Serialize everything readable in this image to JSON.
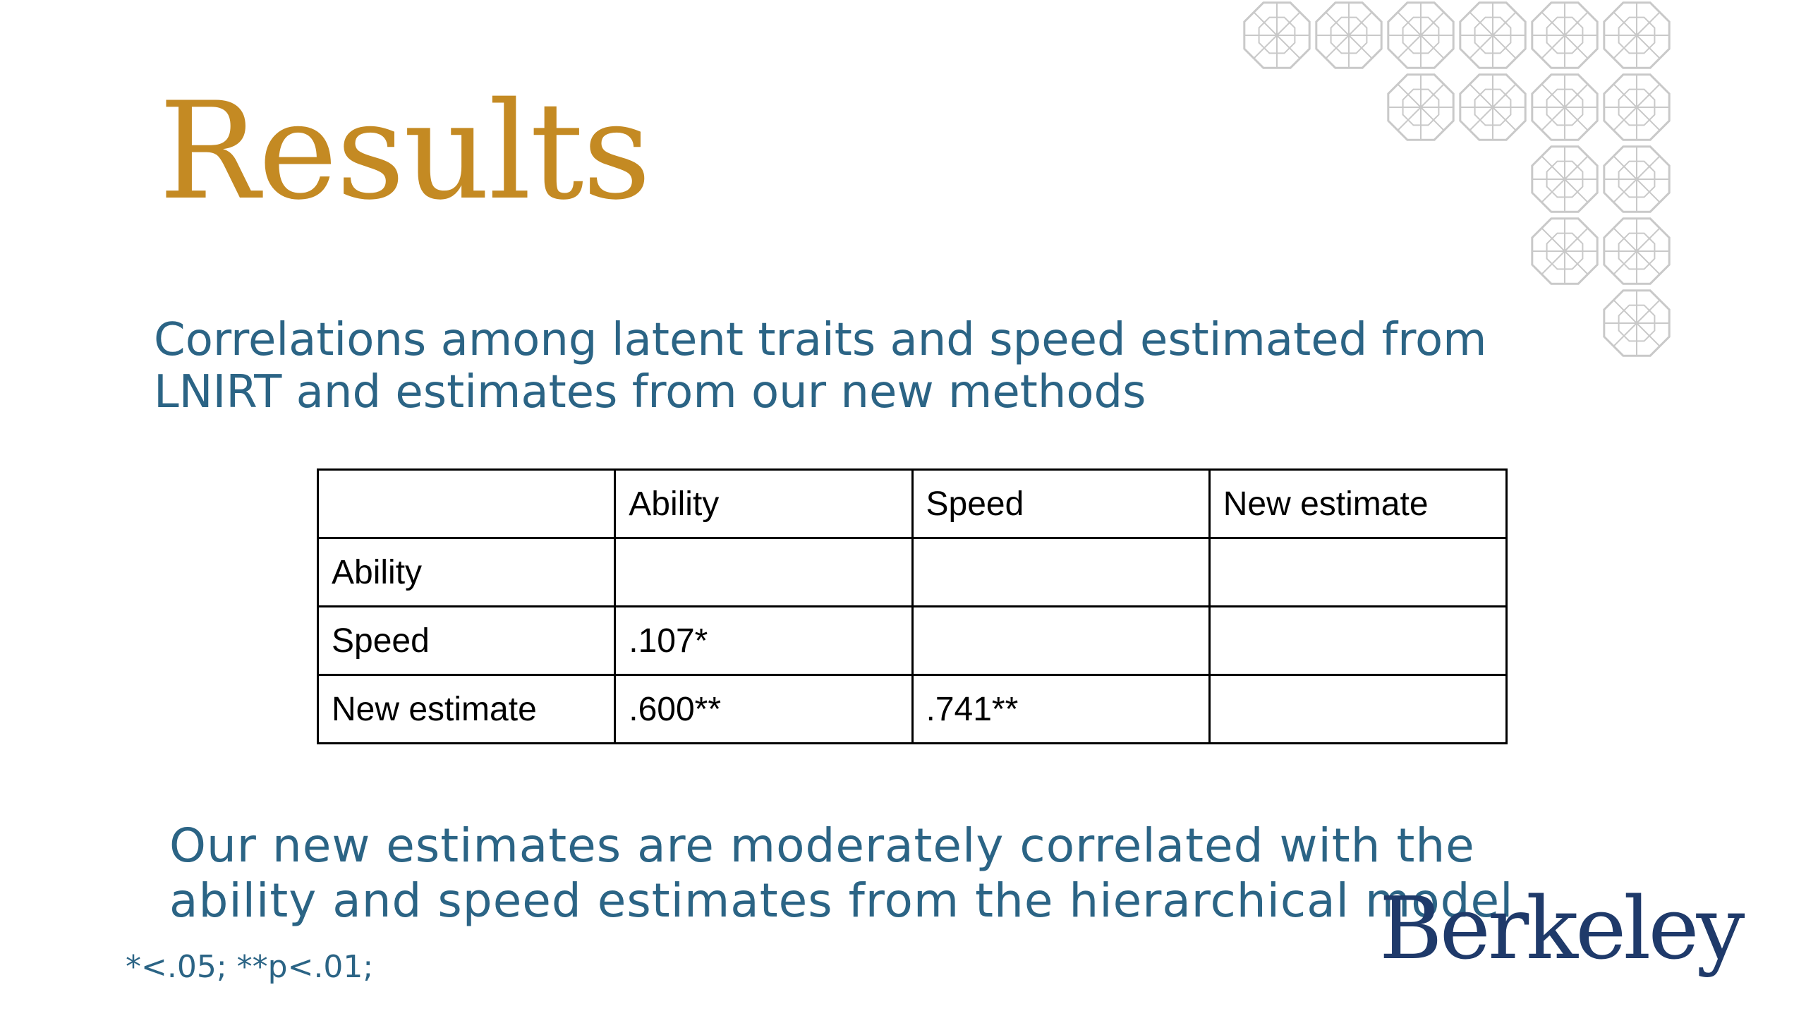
{
  "slide": {
    "title": "Results",
    "subtitle_lines": [
      "Correlations among latent traits and speed estimated from",
      "LNIRT and estimates from our new methods"
    ],
    "table": {
      "header": [
        "",
        "Ability",
        "Speed",
        "New estimate"
      ],
      "rows": [
        [
          "Ability",
          "",
          "",
          ""
        ],
        [
          "Speed",
          ".107*",
          "",
          ""
        ],
        [
          "New estimate",
          ".600**",
          ".741**",
          ""
        ]
      ]
    },
    "conclusion_lines": [
      "Our new estimates are moderately correlated with the",
      "ability and speed estimates from the hierarchical model"
    ],
    "footnote": "*<.05; **p<.01;",
    "logo_text": "Berkeley"
  },
  "colors": {
    "title": "#C48A23",
    "body_text": "#2B6485",
    "logo": "#1F3A6A",
    "pattern": "#C9C9C9"
  },
  "icons": [
    "geometric-pattern-decoration"
  ]
}
